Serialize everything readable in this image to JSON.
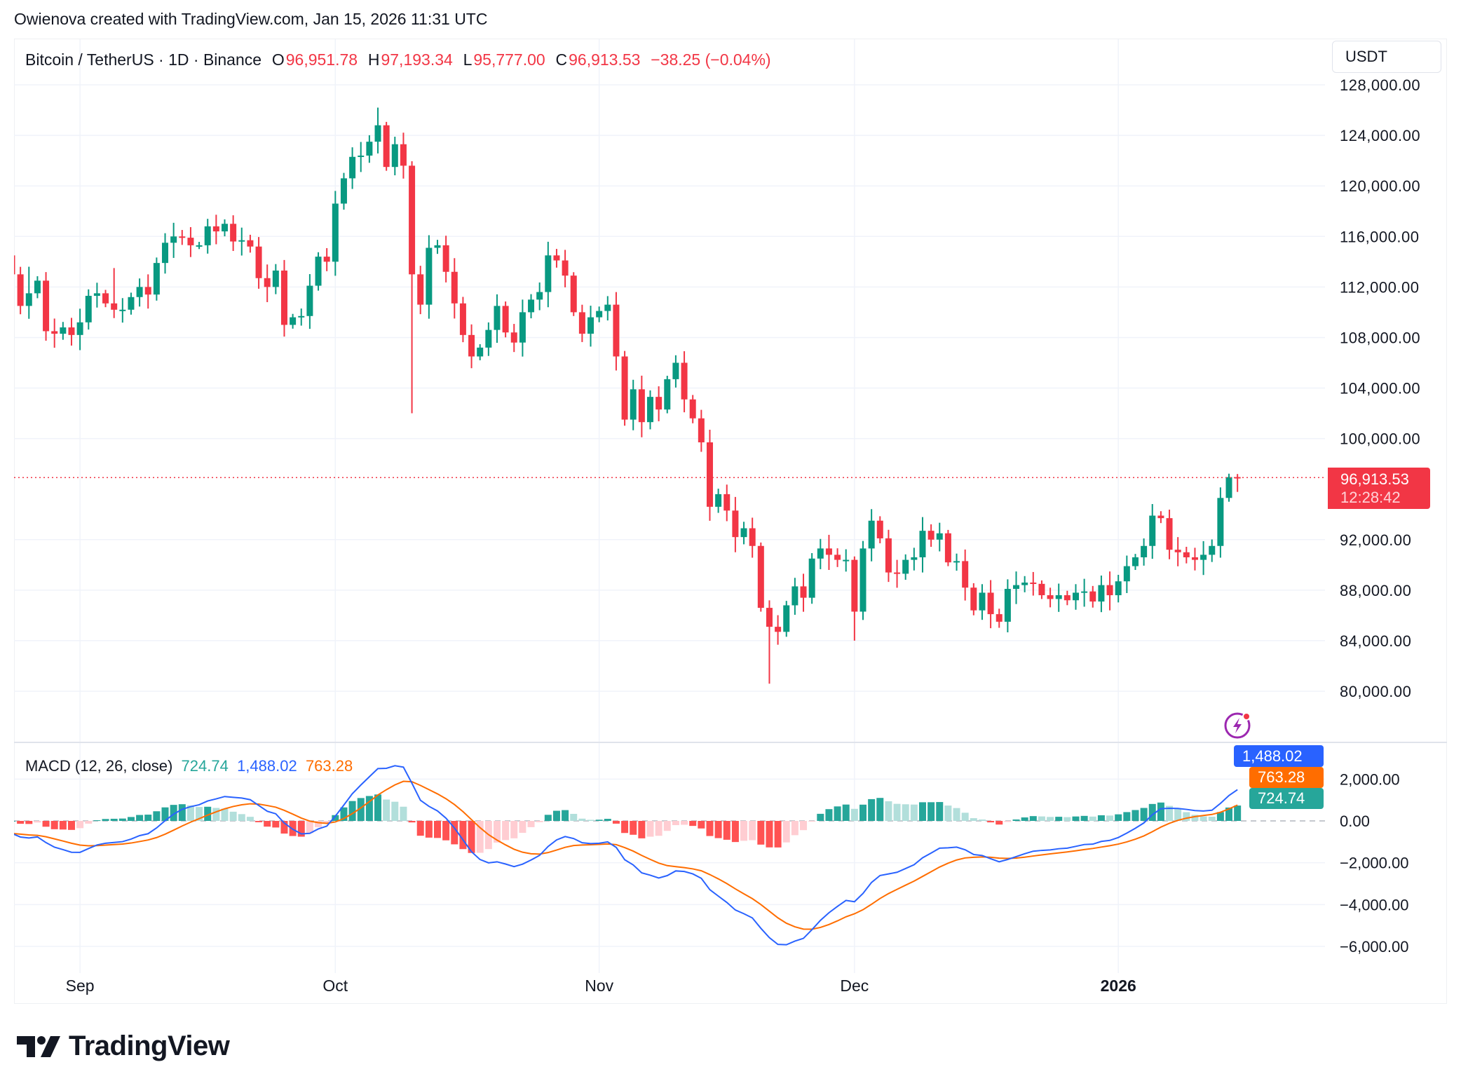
{
  "credit": "Owienova created with TradingView.com, Jan 15, 2026 11:31 UTC",
  "legend": {
    "symbol": "Bitcoin / TetherUS · 1D · Binance",
    "o_label": "O",
    "o": "96,951.78",
    "h_label": "H",
    "h": "97,193.34",
    "l_label": "L",
    "l": "95,777.00",
    "c_label": "C",
    "c": "96,913.53",
    "change": "−38.25 (−0.04%)"
  },
  "currency": "USDT",
  "price_axis": [
    "128,000.00",
    "124,000.00",
    "120,000.00",
    "116,000.00",
    "112,000.00",
    "108,000.00",
    "104,000.00",
    "100,000.00",
    "92,000.00",
    "88,000.00",
    "84,000.00",
    "80,000.00"
  ],
  "price_axis_values": [
    128000,
    124000,
    120000,
    116000,
    112000,
    108000,
    104000,
    100000,
    92000,
    88000,
    84000,
    80000
  ],
  "last_price": {
    "value": 96913.53,
    "label": "96,913.53",
    "countdown": "12:28:42"
  },
  "time_axis": [
    {
      "label": "Sep",
      "day_index": 8,
      "bold": false
    },
    {
      "label": "Oct",
      "day_index": 38,
      "bold": false
    },
    {
      "label": "Nov",
      "day_index": 69,
      "bold": false
    },
    {
      "label": "Dec",
      "day_index": 99,
      "bold": false
    },
    {
      "label": "2026",
      "day_index": 130,
      "bold": true
    }
  ],
  "macd": {
    "title": "MACD (12, 26, close)",
    "histogram": "724.74",
    "macd": "1,488.02",
    "signal": "763.28",
    "axis": [
      "2,000.00",
      "0.00",
      "−2,000.00",
      "−4,000.00",
      "−6,000.00"
    ],
    "axis_values": [
      2000,
      0,
      -2000,
      -4000,
      -6000
    ]
  },
  "colors": {
    "up": "#089981",
    "down": "#F23645",
    "macd": "#2962FF",
    "signal": "#FF6D00",
    "hist_up_strong": "#26A69A",
    "hist_up_weak": "#B2DFDB",
    "hist_down_strong": "#FF5252",
    "hist_down_weak": "#FFCDD2"
  },
  "chart_data": {
    "type": "candlestick",
    "title": "Bitcoin / TetherUS · 1D · Binance",
    "start_date": "2025-08-24",
    "closes_thousands": [
      113,
      110.5,
      111.5,
      112.5,
      108.5,
      108.3,
      108.8,
      108.2,
      109.2,
      111.3,
      111.5,
      110.7,
      110.2,
      110.2,
      111.2,
      112,
      111.4,
      113.9,
      115.5,
      116,
      115.9,
      115.3,
      115.3,
      116.8,
      116.4,
      117,
      115.6,
      115.7,
      115.2,
      112.7,
      112,
      113.3,
      109,
      109.6,
      109.7,
      112.1,
      114.4,
      114,
      118.6,
      120.6,
      122.3,
      122.4,
      123.5,
      124.8,
      121.5,
      123.3,
      121.6,
      113,
      110.6,
      115.1,
      115.3,
      113.2,
      110.7,
      108.2,
      106.5,
      107.2,
      108.6,
      110.5,
      108.4,
      107.6,
      110,
      111,
      111.6,
      114.5,
      114.1,
      112.9,
      110,
      108.3,
      109.6,
      110.1,
      110.6,
      106.5,
      101.5,
      103.9,
      101.3,
      103.3,
      102.3,
      104.7,
      106,
      103.1,
      101.6,
      99.7,
      94.6,
      95.6,
      94.3,
      92.2,
      92.9,
      91.5,
      86.6,
      85.1,
      84.7,
      86.8,
      88.3,
      87.4,
      90.5,
      91.3,
      90.8,
      90.4,
      90.4,
      86.3,
      91.3,
      93.5,
      92.1,
      89.4,
      89.3,
      90.4,
      90.6,
      92.7,
      92,
      92.5,
      90.2,
      90.3,
      88.2,
      86.4,
      87.8,
      86.1,
      85.5,
      88.1,
      88.4,
      88.6,
      88.5,
      87.6,
      87.3,
      87.6,
      87.2,
      87.8,
      87.9,
      87.1,
      88.4,
      87.6,
      88.7,
      89.9,
      90.6,
      91.5,
      93.9,
      93.7,
      91.2,
      91,
      90.6,
      90.4,
      90.8,
      91.5,
      95.3,
      96.95,
      96.91353
    ],
    "first_open_thousands": 114.5,
    "notable_highs": {
      "43": 126.2,
      "2": 113.6,
      "12": 113.5
    },
    "notable_lows": {
      "47": 102.0,
      "89": 80.6,
      "99": 84.0
    },
    "last_candle": {
      "o": 96951.78,
      "h": 97193.34,
      "l": 95777.0,
      "c": 96913.53
    },
    "ylim": [
      76000,
      129000
    ]
  }
}
